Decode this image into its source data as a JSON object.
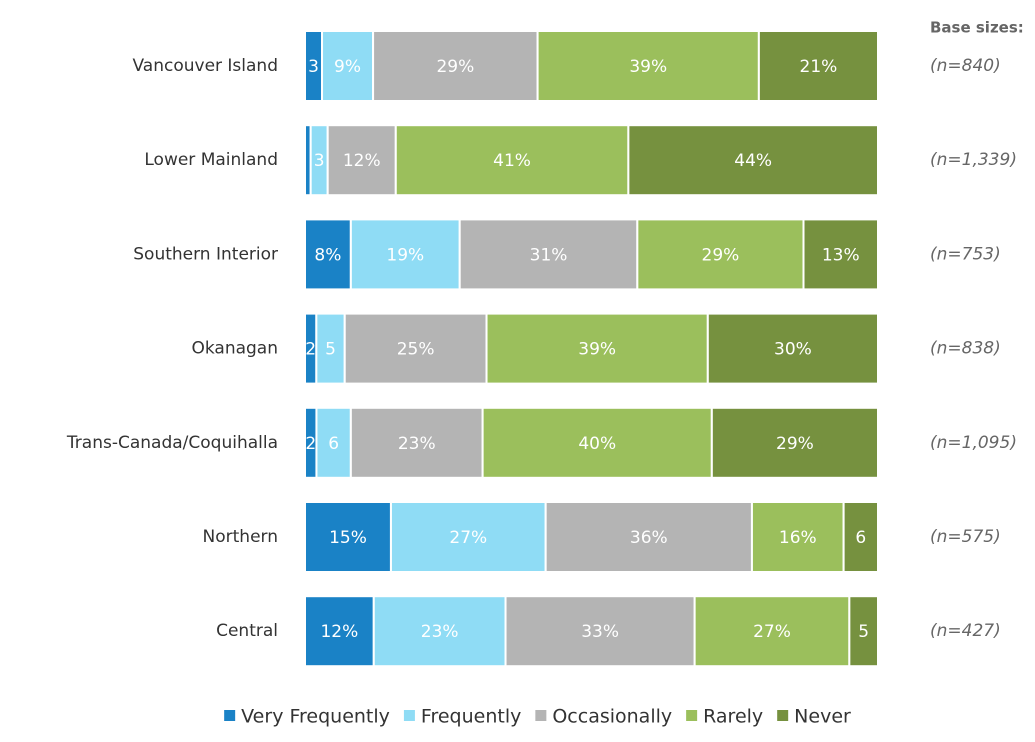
{
  "chart_data": {
    "type": "stacked_bar_horizontal",
    "categories": [
      "Vancouver Island",
      "Lower Mainland",
      "Southern Interior",
      "Okanagan",
      "Trans-Canada/Coquihalla",
      "Northern",
      "Central"
    ],
    "series": [
      {
        "name": "Very Frequently",
        "color": "#1a82c6",
        "values": [
          3,
          1,
          8,
          2,
          2,
          15,
          12
        ],
        "value_labels": [
          "3",
          null,
          "8%",
          "2",
          "2",
          "15%",
          "12%"
        ]
      },
      {
        "name": "Frequently",
        "color": "#8fdcf5",
        "values": [
          9,
          3,
          19,
          5,
          6,
          27,
          23
        ],
        "value_labels": [
          "9%",
          "3",
          "19%",
          "5",
          "6",
          "27%",
          "23%"
        ]
      },
      {
        "name": "Occasionally",
        "color": "#b4b4b4",
        "values": [
          29,
          12,
          31,
          25,
          23,
          36,
          33
        ],
        "value_labels": [
          "29%",
          "12%",
          "31%",
          "25%",
          "23%",
          "36%",
          "33%"
        ]
      },
      {
        "name": "Rarely",
        "color": "#9bbf5c",
        "values": [
          39,
          41,
          29,
          39,
          40,
          16,
          27
        ],
        "value_labels": [
          "39%",
          "41%",
          "29%",
          "39%",
          "40%",
          "16%",
          "27%"
        ]
      },
      {
        "name": "Never",
        "color": "#76913f",
        "values": [
          21,
          44,
          13,
          30,
          29,
          6,
          5
        ],
        "value_labels": [
          "21%",
          "44%",
          "13%",
          "30%",
          "29%",
          "6",
          "5"
        ]
      }
    ],
    "base_sizes_title": "Base sizes:",
    "base_sizes": [
      "(n=840)",
      "(n=1,339)",
      "(n=753)",
      "(n=838)",
      "(n=1,095)",
      "(n=575)",
      "(n=427)"
    ],
    "legend": "bottom"
  }
}
